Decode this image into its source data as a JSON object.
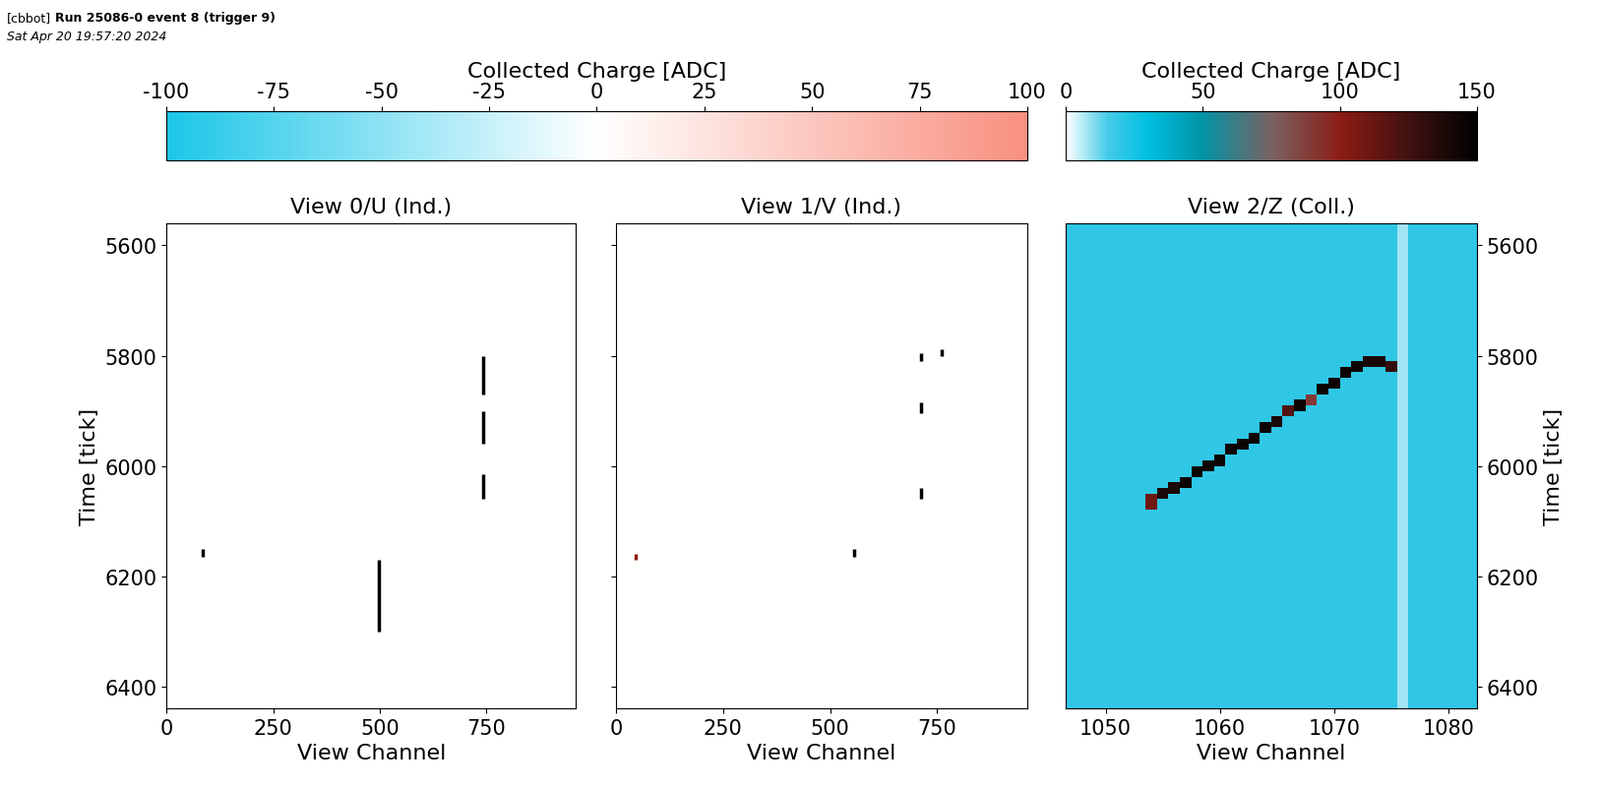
{
  "header": {
    "tag": "[cbbot]",
    "run": "Run 25086-0 event 8 (trigger 9)",
    "date": "Sat Apr 20 19:57:20 2024"
  },
  "colorbars": [
    {
      "label": "Collected Charge [ADC]",
      "range": [
        -100,
        100
      ],
      "ticks": [
        -100,
        -75,
        -50,
        -25,
        0,
        25,
        50,
        75,
        100
      ],
      "views": [
        0,
        1
      ]
    },
    {
      "label": "Collected Charge [ADC]",
      "range": [
        0,
        150
      ],
      "ticks": [
        0,
        50,
        100,
        150
      ],
      "views": [
        2
      ]
    }
  ],
  "chart_data": [
    {
      "type": "heatmap",
      "title": "View 0/U (Ind.)",
      "x_label": "View Channel",
      "y_label": "Time [tick]",
      "xlim": [
        0,
        960
      ],
      "xticks": [
        0,
        250,
        500,
        750
      ],
      "ylim": [
        6440,
        5560
      ],
      "yticks": [
        5600,
        5800,
        6000,
        6200,
        6400
      ],
      "background": 0,
      "hits": [
        {
          "channel": 742,
          "tick_start": 5800,
          "tick_end": 5870,
          "charge": 150
        },
        {
          "channel": 742,
          "tick_start": 5900,
          "tick_end": 5960,
          "charge": 150
        },
        {
          "channel": 742,
          "tick_start": 6015,
          "tick_end": 6060,
          "charge": 150
        },
        {
          "channel": 497,
          "tick_start": 6170,
          "tick_end": 6300,
          "charge": 150
        },
        {
          "channel": 85,
          "tick_start": 6150,
          "tick_end": 6165,
          "charge": 150
        }
      ]
    },
    {
      "type": "heatmap",
      "title": "View 1/V (Ind.)",
      "x_label": "View Channel",
      "tick_labels": "x",
      "xlim": [
        0,
        960
      ],
      "xticks": [
        0,
        250,
        500,
        750
      ],
      "ylim": [
        6440,
        5560
      ],
      "yticks": [
        5600,
        5800,
        6000,
        6200,
        6400
      ],
      "background": 0,
      "hits": [
        {
          "channel": 712,
          "tick_start": 5795,
          "tick_end": 5810,
          "charge": 150
        },
        {
          "channel": 712,
          "tick_start": 5885,
          "tick_end": 5905,
          "charge": 150
        },
        {
          "channel": 712,
          "tick_start": 6040,
          "tick_end": 6060,
          "charge": 150
        },
        {
          "channel": 760,
          "tick_start": 5788,
          "tick_end": 5800,
          "charge": 150
        },
        {
          "channel": 555,
          "tick_start": 6150,
          "tick_end": 6165,
          "charge": 150
        },
        {
          "channel": 45,
          "tick_start": 6160,
          "tick_end": 6170,
          "charge": 100
        }
      ]
    },
    {
      "type": "heatmap",
      "title": "View 2/Z (Coll.)",
      "x_label": "View Channel",
      "y_label": "Time [tick]",
      "xlim": [
        1046.5,
        1082.5
      ],
      "xticks": [
        1050,
        1060,
        1070,
        1080
      ],
      "ylim": [
        6440,
        5560
      ],
      "yticks": [
        5600,
        5800,
        6000,
        6200,
        6400
      ],
      "background": 20,
      "channel_baselines": [
        {
          "channel": 1076,
          "charge": 8
        }
      ],
      "hits": [
        {
          "channel": 1054,
          "tick_start": 6050,
          "tick_end": 6080,
          "charge": 110
        },
        {
          "channel": 1055,
          "tick_start": 6040,
          "tick_end": 6060,
          "charge": 140
        },
        {
          "channel": 1056,
          "tick_start": 6030,
          "tick_end": 6050,
          "charge": 140
        },
        {
          "channel": 1057,
          "tick_start": 6020,
          "tick_end": 6040,
          "charge": 145
        },
        {
          "channel": 1058,
          "tick_start": 6000,
          "tick_end": 6020,
          "charge": 145
        },
        {
          "channel": 1059,
          "tick_start": 5990,
          "tick_end": 6010,
          "charge": 145
        },
        {
          "channel": 1060,
          "tick_start": 5980,
          "tick_end": 6000,
          "charge": 145
        },
        {
          "channel": 1061,
          "tick_start": 5960,
          "tick_end": 5980,
          "charge": 145
        },
        {
          "channel": 1062,
          "tick_start": 5950,
          "tick_end": 5970,
          "charge": 145
        },
        {
          "channel": 1063,
          "tick_start": 5940,
          "tick_end": 5960,
          "charge": 145
        },
        {
          "channel": 1064,
          "tick_start": 5920,
          "tick_end": 5940,
          "charge": 145
        },
        {
          "channel": 1065,
          "tick_start": 5910,
          "tick_end": 5930,
          "charge": 140
        },
        {
          "channel": 1066,
          "tick_start": 5890,
          "tick_end": 5910,
          "charge": 120
        },
        {
          "channel": 1067,
          "tick_start": 5880,
          "tick_end": 5900,
          "charge": 145
        },
        {
          "channel": 1068,
          "tick_start": 5870,
          "tick_end": 5890,
          "charge": 90
        },
        {
          "channel": 1069,
          "tick_start": 5850,
          "tick_end": 5870,
          "charge": 145
        },
        {
          "channel": 1070,
          "tick_start": 5840,
          "tick_end": 5860,
          "charge": 145
        },
        {
          "channel": 1071,
          "tick_start": 5820,
          "tick_end": 5840,
          "charge": 145
        },
        {
          "channel": 1072,
          "tick_start": 5810,
          "tick_end": 5830,
          "charge": 145
        },
        {
          "channel": 1073,
          "tick_start": 5800,
          "tick_end": 5820,
          "charge": 140
        },
        {
          "channel": 1074,
          "tick_start": 5800,
          "tick_end": 5820,
          "charge": 140
        },
        {
          "channel": 1075,
          "tick_start": 5810,
          "tick_end": 5830,
          "charge": 130
        }
      ]
    }
  ]
}
